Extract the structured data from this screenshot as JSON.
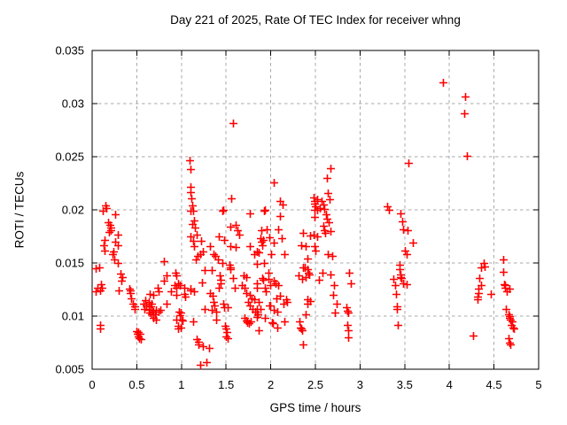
{
  "chart_data": {
    "type": "scatter",
    "title": "Day 221 of 2025, Rate Of TEC Index for receiver whng",
    "xlabel": "GPS time / hours",
    "ylabel": "ROTI / TECUs",
    "xlim": [
      0,
      5
    ],
    "ylim": [
      0.005,
      0.035
    ],
    "grid": true,
    "legend": false,
    "marker": {
      "shape": "plus",
      "color": "#ff0000",
      "size": 4.5
    },
    "grid_color": "#a8a8a8",
    "frame_color": "#000000",
    "xticks": [
      {
        "value": 0,
        "label": "0"
      },
      {
        "value": 0.5,
        "label": "0.5"
      },
      {
        "value": 1,
        "label": "1"
      },
      {
        "value": 1.5,
        "label": "1.5"
      },
      {
        "value": 2,
        "label": "2"
      },
      {
        "value": 2.5,
        "label": "2.5"
      },
      {
        "value": 3,
        "label": "3"
      },
      {
        "value": 3.5,
        "label": "3.5"
      },
      {
        "value": 4,
        "label": "4"
      },
      {
        "value": 4.5,
        "label": "4.5"
      },
      {
        "value": 5,
        "label": "5"
      }
    ],
    "yticks": [
      {
        "value": 0.005,
        "label": "0.005"
      },
      {
        "value": 0.01,
        "label": "0.01"
      },
      {
        "value": 0.015,
        "label": "0.015"
      },
      {
        "value": 0.02,
        "label": "0.02"
      },
      {
        "value": 0.025,
        "label": "0.025"
      },
      {
        "value": 0.03,
        "label": "0.03"
      },
      {
        "value": 0.035,
        "label": "0.035"
      }
    ],
    "points": [
      [
        0.04,
        0.0145
      ],
      [
        0.04,
        0.0123
      ],
      [
        0.06,
        0.0127
      ],
      [
        0.08,
        0.0146
      ],
      [
        0.09,
        0.0124
      ],
      [
        0.09,
        0.0092
      ],
      [
        0.09,
        0.0088
      ],
      [
        0.1,
        0.013
      ],
      [
        0.11,
        0.0127
      ],
      [
        0.12,
        0.0199
      ],
      [
        0.13,
        0.0167
      ],
      [
        0.14,
        0.0172
      ],
      [
        0.14,
        0.0162
      ],
      [
        0.15,
        0.0204
      ],
      [
        0.16,
        0.0202
      ],
      [
        0.18,
        0.0188
      ],
      [
        0.19,
        0.0179
      ],
      [
        0.2,
        0.0186
      ],
      [
        0.21,
        0.0183
      ],
      [
        0.21,
        0.0181
      ],
      [
        0.23,
        0.0158
      ],
      [
        0.24,
        0.0161
      ],
      [
        0.25,
        0.0153
      ],
      [
        0.26,
        0.0196
      ],
      [
        0.26,
        0.017
      ],
      [
        0.29,
        0.0177
      ],
      [
        0.29,
        0.0167
      ],
      [
        0.29,
        0.015
      ],
      [
        0.3,
        0.0124
      ],
      [
        0.32,
        0.014
      ],
      [
        0.33,
        0.0133
      ],
      [
        0.34,
        0.0137
      ],
      [
        0.42,
        0.0126
      ],
      [
        0.43,
        0.0124
      ],
      [
        0.43,
        0.0122
      ],
      [
        0.44,
        0.0117
      ],
      [
        0.46,
        0.0112
      ],
      [
        0.48,
        0.0109
      ],
      [
        0.48,
        0.0107
      ],
      [
        0.5,
        0.0086
      ],
      [
        0.51,
        0.0083
      ],
      [
        0.52,
        0.0085
      ],
      [
        0.52,
        0.0081
      ],
      [
        0.53,
        0.0079
      ],
      [
        0.54,
        0.0083
      ],
      [
        0.55,
        0.0078
      ],
      [
        0.58,
        0.0112
      ],
      [
        0.59,
        0.0107
      ],
      [
        0.6,
        0.0115
      ],
      [
        0.61,
        0.011
      ],
      [
        0.63,
        0.0113
      ],
      [
        0.63,
        0.0106
      ],
      [
        0.64,
        0.0121
      ],
      [
        0.64,
        0.0103
      ],
      [
        0.65,
        0.0109
      ],
      [
        0.66,
        0.0112
      ],
      [
        0.66,
        0.0102
      ],
      [
        0.67,
        0.0106
      ],
      [
        0.68,
        0.012
      ],
      [
        0.68,
        0.0104
      ],
      [
        0.68,
        0.0098
      ],
      [
        0.7,
        0.0102
      ],
      [
        0.71,
        0.0106
      ],
      [
        0.71,
        0.0097
      ],
      [
        0.73,
        0.0127
      ],
      [
        0.74,
        0.0123
      ],
      [
        0.74,
        0.0104
      ],
      [
        0.76,
        0.0106
      ],
      [
        0.8,
        0.0152
      ],
      [
        0.8,
        0.0133
      ],
      [
        0.83,
        0.0138
      ],
      [
        0.83,
        0.0112
      ],
      [
        0.88,
        0.0123
      ],
      [
        0.92,
        0.0129
      ],
      [
        0.93,
        0.0141
      ],
      [
        0.94,
        0.0138
      ],
      [
        0.94,
        0.0127
      ],
      [
        0.94,
        0.012
      ],
      [
        0.94,
        0.0097
      ],
      [
        0.96,
        0.0131
      ],
      [
        0.96,
        0.0091
      ],
      [
        0.96,
        0.0088
      ],
      [
        0.97,
        0.0104
      ],
      [
        0.98,
        0.0129
      ],
      [
        0.98,
        0.0101
      ],
      [
        0.99,
        0.0103
      ],
      [
        0.99,
        0.0089
      ],
      [
        1.0,
        0.0097
      ],
      [
        1.01,
        0.0096
      ],
      [
        1.03,
        0.0127
      ],
      [
        1.03,
        0.0121
      ],
      [
        1.04,
        0.0118
      ],
      [
        1.09,
        0.0247
      ],
      [
        1.1,
        0.0238
      ],
      [
        1.1,
        0.0222
      ],
      [
        1.1,
        0.0217
      ],
      [
        1.1,
        0.0199
      ],
      [
        1.1,
        0.0175
      ],
      [
        1.1,
        0.0126
      ],
      [
        1.1,
        0.0124
      ],
      [
        1.11,
        0.0211
      ],
      [
        1.12,
        0.0204
      ],
      [
        1.12,
        0.0187
      ],
      [
        1.13,
        0.0199
      ],
      [
        1.13,
        0.0171
      ],
      [
        1.13,
        0.0095
      ],
      [
        1.14,
        0.019
      ],
      [
        1.14,
        0.0166
      ],
      [
        1.14,
        0.0123
      ],
      [
        1.15,
        0.0183
      ],
      [
        1.16,
        0.0153
      ],
      [
        1.17,
        0.0177
      ],
      [
        1.17,
        0.0078
      ],
      [
        1.18,
        0.0157
      ],
      [
        1.19,
        0.0076
      ],
      [
        1.19,
        0.0073
      ],
      [
        1.21,
        0.0158
      ],
      [
        1.21,
        0.0054
      ],
      [
        1.22,
        0.0171
      ],
      [
        1.23,
        0.0132
      ],
      [
        1.24,
        0.0161
      ],
      [
        1.24,
        0.0072
      ],
      [
        1.26,
        0.0143
      ],
      [
        1.26,
        0.0107
      ],
      [
        1.28,
        0.0057
      ],
      [
        1.31,
        0.007
      ],
      [
        1.32,
        0.0166
      ],
      [
        1.32,
        0.0122
      ],
      [
        1.34,
        0.0143
      ],
      [
        1.34,
        0.0106
      ],
      [
        1.35,
        0.0119
      ],
      [
        1.36,
        0.0158
      ],
      [
        1.36,
        0.0113
      ],
      [
        1.37,
        0.011
      ],
      [
        1.38,
        0.0157
      ],
      [
        1.39,
        0.0104
      ],
      [
        1.39,
        0.0097
      ],
      [
        1.41,
        0.0153
      ],
      [
        1.42,
        0.0175
      ],
      [
        1.42,
        0.0127
      ],
      [
        1.43,
        0.0138
      ],
      [
        1.44,
        0.0134
      ],
      [
        1.44,
        0.0131
      ],
      [
        1.46,
        0.0199
      ],
      [
        1.46,
        0.015
      ],
      [
        1.47,
        0.02
      ],
      [
        1.47,
        0.0112
      ],
      [
        1.48,
        0.0172
      ],
      [
        1.48,
        0.0108
      ],
      [
        1.49,
        0.0091
      ],
      [
        1.5,
        0.0088
      ],
      [
        1.5,
        0.0081
      ],
      [
        1.51,
        0.0085
      ],
      [
        1.52,
        0.0079
      ],
      [
        1.52,
        0.0108
      ],
      [
        1.54,
        0.0148
      ],
      [
        1.55,
        0.0184
      ],
      [
        1.55,
        0.0166
      ],
      [
        1.55,
        0.0146
      ],
      [
        1.55,
        0.0144
      ],
      [
        1.56,
        0.0211
      ],
      [
        1.58,
        0.0282
      ],
      [
        1.58,
        0.0136
      ],
      [
        1.6,
        0.0127
      ],
      [
        1.61,
        0.0186
      ],
      [
        1.61,
        0.0165
      ],
      [
        1.63,
        0.0181
      ],
      [
        1.65,
        0.0177
      ],
      [
        1.68,
        0.0129
      ],
      [
        1.7,
        0.0138
      ],
      [
        1.71,
        0.0127
      ],
      [
        1.71,
        0.0098
      ],
      [
        1.73,
        0.0137
      ],
      [
        1.73,
        0.0122
      ],
      [
        1.73,
        0.0096
      ],
      [
        1.74,
        0.0094
      ],
      [
        1.75,
        0.0113
      ],
      [
        1.76,
        0.0093
      ],
      [
        1.77,
        0.0197
      ],
      [
        1.77,
        0.0166
      ],
      [
        1.77,
        0.012
      ],
      [
        1.77,
        0.011
      ],
      [
        1.78,
        0.0095
      ],
      [
        1.79,
        0.0117
      ],
      [
        1.8,
        0.0107
      ],
      [
        1.82,
        0.0158
      ],
      [
        1.82,
        0.0116
      ],
      [
        1.83,
        0.0104
      ],
      [
        1.85,
        0.0161
      ],
      [
        1.85,
        0.0149
      ],
      [
        1.85,
        0.0131
      ],
      [
        1.85,
        0.0127
      ],
      [
        1.85,
        0.0107
      ],
      [
        1.85,
        0.0099
      ],
      [
        1.86,
        0.0102
      ],
      [
        1.87,
        0.016
      ],
      [
        1.87,
        0.0113
      ],
      [
        1.87,
        0.0087
      ],
      [
        1.88,
        0.0173
      ],
      [
        1.88,
        0.0107
      ],
      [
        1.89,
        0.0181
      ],
      [
        1.89,
        0.017
      ],
      [
        1.9,
        0.0167
      ],
      [
        1.9,
        0.0136
      ],
      [
        1.91,
        0.0172
      ],
      [
        1.91,
        0.0134
      ],
      [
        1.92,
        0.0199
      ],
      [
        1.92,
        0.015
      ],
      [
        1.93,
        0.02
      ],
      [
        1.93,
        0.0127
      ],
      [
        1.93,
        0.0098
      ],
      [
        1.94,
        0.0123
      ],
      [
        1.95,
        0.0182
      ],
      [
        1.97,
        0.0141
      ],
      [
        1.97,
        0.0135
      ],
      [
        1.98,
        0.0174
      ],
      [
        1.98,
        0.011
      ],
      [
        1.99,
        0.0129
      ],
      [
        1.99,
        0.011
      ],
      [
        2.0,
        0.0158
      ],
      [
        2.01,
        0.0094
      ],
      [
        2.02,
        0.0093
      ],
      [
        2.03,
        0.0226
      ],
      [
        2.03,
        0.0169
      ],
      [
        2.03,
        0.0133
      ],
      [
        2.03,
        0.0106
      ],
      [
        2.05,
        0.0131
      ],
      [
        2.06,
        0.0117
      ],
      [
        2.07,
        0.0104
      ],
      [
        2.07,
        0.0089
      ],
      [
        2.08,
        0.0182
      ],
      [
        2.08,
        0.0129
      ],
      [
        2.1,
        0.0208
      ],
      [
        2.1,
        0.0194
      ],
      [
        2.1,
        0.0119
      ],
      [
        2.12,
        0.0173
      ],
      [
        2.13,
        0.0205
      ],
      [
        2.14,
        0.0112
      ],
      [
        2.15,
        0.0158
      ],
      [
        2.15,
        0.0095
      ],
      [
        2.17,
        0.0116
      ],
      [
        2.18,
        0.0113
      ],
      [
        2.31,
        0.0138
      ],
      [
        2.32,
        0.0095
      ],
      [
        2.33,
        0.0089
      ],
      [
        2.34,
        0.0167
      ],
      [
        2.34,
        0.0088
      ],
      [
        2.35,
        0.0135
      ],
      [
        2.35,
        0.0087
      ],
      [
        2.36,
        0.0178
      ],
      [
        2.36,
        0.0146
      ],
      [
        2.36,
        0.0073
      ],
      [
        2.38,
        0.0146
      ],
      [
        2.39,
        0.0166
      ],
      [
        2.39,
        0.0137
      ],
      [
        2.39,
        0.0102
      ],
      [
        2.41,
        0.0154
      ],
      [
        2.41,
        0.0144
      ],
      [
        2.41,
        0.0116
      ],
      [
        2.41,
        0.0112
      ],
      [
        2.42,
        0.0141
      ],
      [
        2.43,
        0.0139
      ],
      [
        2.44,
        0.0176
      ],
      [
        2.44,
        0.0114
      ],
      [
        2.48,
        0.0212
      ],
      [
        2.48,
        0.0177
      ],
      [
        2.49,
        0.0208
      ],
      [
        2.49,
        0.0206
      ],
      [
        2.49,
        0.02
      ],
      [
        2.49,
        0.0193
      ],
      [
        2.49,
        0.0166
      ],
      [
        2.5,
        0.0203
      ],
      [
        2.5,
        0.0162
      ],
      [
        2.52,
        0.021
      ],
      [
        2.52,
        0.02
      ],
      [
        2.52,
        0.0175
      ],
      [
        2.54,
        0.0134
      ],
      [
        2.55,
        0.0202
      ],
      [
        2.57,
        0.0208
      ],
      [
        2.58,
        0.0141
      ],
      [
        2.59,
        0.0205
      ],
      [
        2.59,
        0.0185
      ],
      [
        2.6,
        0.0201
      ],
      [
        2.6,
        0.0181
      ],
      [
        2.61,
        0.0178
      ],
      [
        2.62,
        0.0196
      ],
      [
        2.63,
        0.023
      ],
      [
        2.63,
        0.0192
      ],
      [
        2.64,
        0.0216
      ],
      [
        2.64,
        0.0158
      ],
      [
        2.65,
        0.0188
      ],
      [
        2.66,
        0.021
      ],
      [
        2.67,
        0.0239
      ],
      [
        2.67,
        0.018
      ],
      [
        2.67,
        0.0139
      ],
      [
        2.69,
        0.0157
      ],
      [
        2.7,
        0.012
      ],
      [
        2.71,
        0.0129
      ],
      [
        2.72,
        0.0103
      ],
      [
        2.74,
        0.0112
      ],
      [
        2.85,
        0.0108
      ],
      [
        2.86,
        0.0105
      ],
      [
        2.86,
        0.0092
      ],
      [
        2.87,
        0.0103
      ],
      [
        2.87,
        0.0087
      ],
      [
        2.87,
        0.008
      ],
      [
        2.88,
        0.0141
      ],
      [
        2.9,
        0.0131
      ],
      [
        3.3,
        0.0203
      ],
      [
        3.32,
        0.02
      ],
      [
        3.37,
        0.0135
      ],
      [
        3.39,
        0.0129
      ],
      [
        3.4,
        0.0121
      ],
      [
        3.41,
        0.0109
      ],
      [
        3.41,
        0.0107
      ],
      [
        3.42,
        0.0092
      ],
      [
        3.44,
        0.0148
      ],
      [
        3.44,
        0.0144
      ],
      [
        3.45,
        0.0197
      ],
      [
        3.45,
        0.0139
      ],
      [
        3.45,
        0.0137
      ],
      [
        3.46,
        0.0136
      ],
      [
        3.47,
        0.0189
      ],
      [
        3.48,
        0.0182
      ],
      [
        3.48,
        0.0131
      ],
      [
        3.5,
        0.0162
      ],
      [
        3.52,
        0.0158
      ],
      [
        3.52,
        0.013
      ],
      [
        3.53,
        0.0181
      ],
      [
        3.54,
        0.0244
      ],
      [
        3.59,
        0.0169
      ],
      [
        3.93,
        0.032
      ],
      [
        4.17,
        0.0291
      ],
      [
        4.18,
        0.0307
      ],
      [
        4.2,
        0.0251
      ],
      [
        4.27,
        0.0082
      ],
      [
        4.32,
        0.0118
      ],
      [
        4.32,
        0.0116
      ],
      [
        4.33,
        0.0126
      ],
      [
        4.33,
        0.0122
      ],
      [
        4.34,
        0.0136
      ],
      [
        4.36,
        0.0146
      ],
      [
        4.36,
        0.0129
      ],
      [
        4.38,
        0.015
      ],
      [
        4.39,
        0.0147
      ],
      [
        4.46,
        0.0121
      ],
      [
        4.6,
        0.0153
      ],
      [
        4.6,
        0.0142
      ],
      [
        4.61,
        0.013
      ],
      [
        4.62,
        0.0129
      ],
      [
        4.62,
        0.0127
      ],
      [
        4.63,
        0.0107
      ],
      [
        4.64,
        0.0123
      ],
      [
        4.66,
        0.0102
      ],
      [
        4.66,
        0.0079
      ],
      [
        4.67,
        0.0126
      ],
      [
        4.67,
        0.01
      ],
      [
        4.67,
        0.0098
      ],
      [
        4.67,
        0.0075
      ],
      [
        4.68,
        0.0097
      ],
      [
        4.68,
        0.0073
      ],
      [
        4.69,
        0.0092
      ],
      [
        4.7,
        0.0095
      ],
      [
        4.71,
        0.0089
      ],
      [
        4.72,
        0.0088
      ]
    ]
  }
}
